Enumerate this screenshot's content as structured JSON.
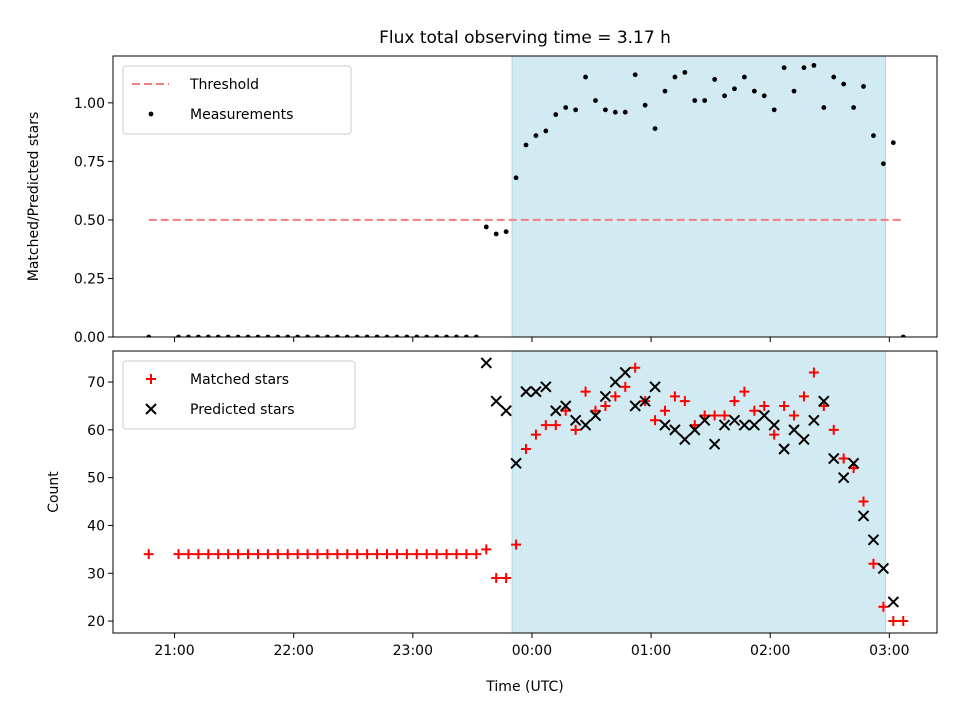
{
  "chart_data": {
    "type": "scatter",
    "title": "Flux total observing time = 3.17 h",
    "xlabel": "Time (UTC)",
    "x_ticks": [
      "21:00",
      "22:00",
      "23:00",
      "00:00",
      "01:00",
      "02:00",
      "03:00"
    ],
    "xlim": [
      "20:29",
      "03:24"
    ],
    "observing_window": [
      "23:50",
      "02:58"
    ],
    "colors": {
      "window": "#add8e6",
      "threshold": "#f08080",
      "matched": "#ff0000",
      "predicted": "#000000"
    },
    "panels": [
      {
        "ylabel": "Matched/Predicted stars",
        "ylim": [
          0,
          1.2
        ],
        "y_ticks": [
          "0.00",
          "0.25",
          "0.50",
          "0.75",
          "1.00"
        ],
        "legend": "upper left",
        "series": [
          {
            "name": "Threshold",
            "style": "dashed-line",
            "x": [
              "20:47",
              "03:07"
            ],
            "y": [
              0.5,
              0.5
            ]
          },
          {
            "name": "Measurements",
            "style": "dot",
            "x": [
              "20:47",
              "21:02",
              "21:07",
              "21:12",
              "21:17",
              "21:22",
              "21:27",
              "21:32",
              "21:37",
              "21:42",
              "21:47",
              "21:52",
              "21:57",
              "22:02",
              "22:07",
              "22:12",
              "22:17",
              "22:22",
              "22:27",
              "22:32",
              "22:37",
              "22:42",
              "22:47",
              "22:52",
              "22:57",
              "23:02",
              "23:07",
              "23:12",
              "23:17",
              "23:22",
              "23:27",
              "23:32",
              "23:37",
              "23:42",
              "23:47",
              "23:52",
              "23:57",
              "00:02",
              "00:07",
              "00:12",
              "00:17",
              "00:22",
              "00:27",
              "00:32",
              "00:37",
              "00:42",
              "00:47",
              "00:52",
              "00:57",
              "01:02",
              "01:07",
              "01:12",
              "01:17",
              "01:22",
              "01:27",
              "01:32",
              "01:37",
              "01:42",
              "01:47",
              "01:52",
              "01:57",
              "02:02",
              "02:07",
              "02:12",
              "02:17",
              "02:22",
              "02:27",
              "02:32",
              "02:37",
              "02:42",
              "02:47",
              "02:52",
              "02:57",
              "03:02",
              "03:07"
            ],
            "y": [
              0,
              0,
              0,
              0,
              0,
              0,
              0,
              0,
              0,
              0,
              0,
              0,
              0,
              0,
              0,
              0,
              0,
              0,
              0,
              0,
              0,
              0,
              0,
              0,
              0,
              0,
              0,
              0,
              0,
              0,
              0,
              0,
              0.47,
              0.44,
              0.45,
              0.68,
              0.82,
              0.86,
              0.88,
              0.95,
              0.98,
              0.97,
              1.11,
              1.01,
              0.97,
              0.96,
              0.96,
              1.12,
              0.99,
              0.89,
              1.05,
              1.11,
              1.13,
              1.01,
              1.01,
              1.1,
              1.03,
              1.06,
              1.11,
              1.05,
              1.03,
              0.97,
              1.15,
              1.05,
              1.15,
              1.16,
              0.98,
              1.11,
              1.08,
              0.98,
              1.07,
              0.86,
              0.74,
              0.83,
              0
            ]
          }
        ]
      },
      {
        "ylabel": "Count",
        "ylim": [
          17.5,
          76.5
        ],
        "y_ticks": [
          "20",
          "30",
          "40",
          "50",
          "60",
          "70"
        ],
        "legend": "upper left",
        "series": [
          {
            "name": "Matched stars",
            "style": "plus",
            "x": [
              "20:47",
              "21:02",
              "21:07",
              "21:12",
              "21:17",
              "21:22",
              "21:27",
              "21:32",
              "21:37",
              "21:42",
              "21:47",
              "21:52",
              "21:57",
              "22:02",
              "22:07",
              "22:12",
              "22:17",
              "22:22",
              "22:27",
              "22:32",
              "22:37",
              "22:42",
              "22:47",
              "22:52",
              "22:57",
              "23:02",
              "23:07",
              "23:12",
              "23:17",
              "23:22",
              "23:27",
              "23:32",
              "23:37",
              "23:42",
              "23:47",
              "23:52",
              "23:57",
              "00:02",
              "00:07",
              "00:12",
              "00:17",
              "00:22",
              "00:27",
              "00:32",
              "00:37",
              "00:42",
              "00:47",
              "00:52",
              "00:57",
              "01:02",
              "01:07",
              "01:12",
              "01:17",
              "01:22",
              "01:27",
              "01:32",
              "01:37",
              "01:42",
              "01:47",
              "01:52",
              "01:57",
              "02:02",
              "02:07",
              "02:12",
              "02:17",
              "02:22",
              "02:27",
              "02:32",
              "02:37",
              "02:42",
              "02:47",
              "02:52",
              "02:57",
              "03:02",
              "03:07"
            ],
            "y": [
              34,
              34,
              34,
              34,
              34,
              34,
              34,
              34,
              34,
              34,
              34,
              34,
              34,
              34,
              34,
              34,
              34,
              34,
              34,
              34,
              34,
              34,
              34,
              34,
              34,
              34,
              34,
              34,
              34,
              34,
              34,
              34,
              35,
              29,
              29,
              36,
              56,
              59,
              61,
              61,
              64,
              60,
              68,
              64,
              65,
              67,
              69,
              73,
              66,
              62,
              64,
              67,
              66,
              61,
              63,
              63,
              63,
              66,
              68,
              64,
              65,
              59,
              65,
              63,
              67,
              72,
              65,
              60,
              54,
              52,
              45,
              32,
              23,
              20,
              20
            ]
          },
          {
            "name": "Predicted stars",
            "style": "x",
            "x": [
              "23:37",
              "23:42",
              "23:47",
              "23:52",
              "23:57",
              "00:02",
              "00:07",
              "00:12",
              "00:17",
              "00:22",
              "00:27",
              "00:32",
              "00:37",
              "00:42",
              "00:47",
              "00:52",
              "00:57",
              "01:02",
              "01:07",
              "01:12",
              "01:17",
              "01:22",
              "01:27",
              "01:32",
              "01:37",
              "01:42",
              "01:47",
              "01:52",
              "01:57",
              "02:02",
              "02:07",
              "02:12",
              "02:17",
              "02:22",
              "02:27",
              "02:32",
              "02:37",
              "02:42",
              "02:47",
              "02:52",
              "02:57",
              "03:02"
            ],
            "y": [
              74,
              66,
              64,
              53,
              68,
              68,
              69,
              64,
              65,
              62,
              61,
              63,
              67,
              70,
              72,
              65,
              66,
              69,
              61,
              60,
              58,
              60,
              62,
              57,
              61,
              62,
              61,
              61,
              63,
              61,
              56,
              60,
              58,
              62,
              66,
              54,
              50,
              53,
              42,
              37,
              31,
              24
            ]
          }
        ]
      }
    ]
  }
}
